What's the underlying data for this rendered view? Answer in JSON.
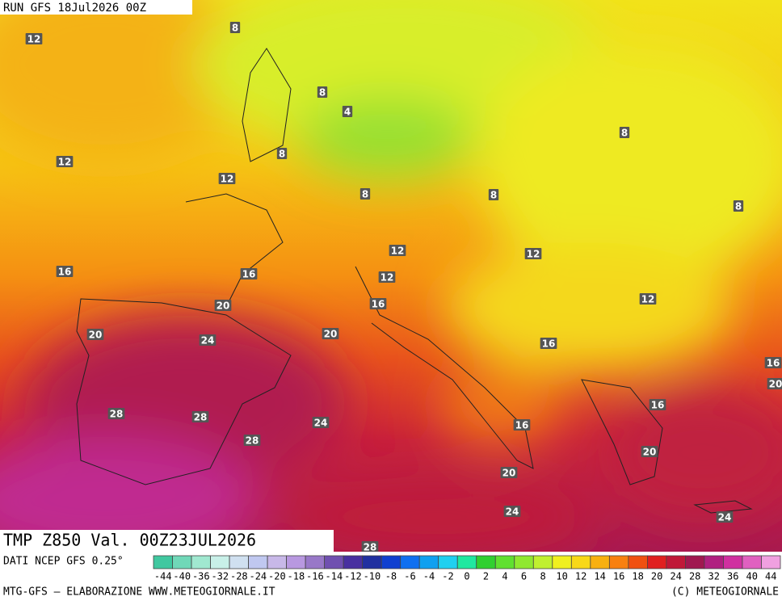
{
  "header": {
    "run": "RUN GFS 18Jul2026 00Z"
  },
  "contour_labels": [
    12,
    8,
    8,
    4,
    8,
    12,
    12,
    8,
    8,
    8,
    8,
    12,
    12,
    16,
    16,
    12,
    16,
    20,
    12,
    20,
    24,
    20,
    16,
    16,
    20,
    16,
    28,
    28,
    24,
    16,
    28,
    20,
    20,
    24,
    24,
    28
  ],
  "footer": {
    "title": "TMP Z850 Val. 00Z23JUL2026",
    "source": "DATI NCEP GFS 0.25°",
    "credit": "MTG-GFS — ELABORAZIONE WWW.METEOGIORNALE.IT",
    "copyright": "(C) METEOGIORNALE"
  },
  "legend": {
    "labels": [
      -44,
      -40,
      -36,
      -32,
      -28,
      -24,
      -20,
      -18,
      -16,
      -14,
      -12,
      -10,
      -8,
      -6,
      -4,
      -2,
      0,
      2,
      4,
      6,
      8,
      10,
      12,
      14,
      16,
      18,
      20,
      24,
      28,
      32,
      36,
      40,
      44
    ],
    "colors": [
      "#40c8a0",
      "#70d8b8",
      "#a0e8d0",
      "#c8f0e8",
      "#d0e0f0",
      "#c0c8f0",
      "#c8b8e8",
      "#b898e0",
      "#9878c8",
      "#7050b0",
      "#4830a0",
      "#2030a0",
      "#1040d0",
      "#1070f0",
      "#10a0f0",
      "#20d0f0",
      "#20e8a0",
      "#30d030",
      "#60e030",
      "#90e830",
      "#c0f030",
      "#f0f020",
      "#f8d818",
      "#f8b010",
      "#f88010",
      "#f05010",
      "#e02020",
      "#c01838",
      "#a01850",
      "#b02080",
      "#d030a0",
      "#e060c0",
      "#f0a0e0"
    ]
  }
}
